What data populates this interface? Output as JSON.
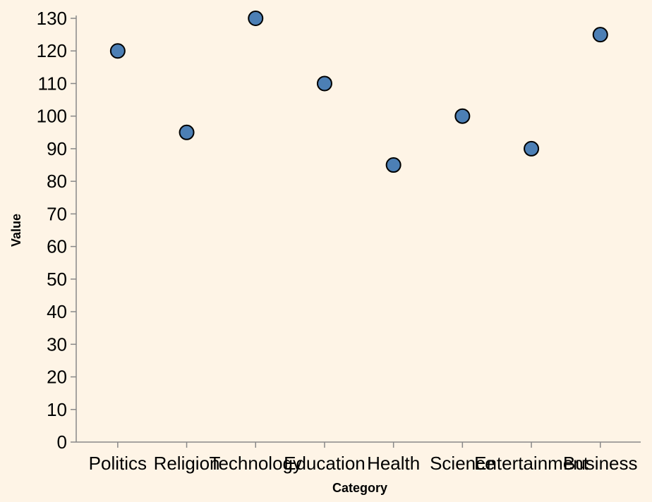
{
  "chart_data": {
    "type": "scatter",
    "categories": [
      "Politics",
      "Religion",
      "Technology",
      "Education",
      "Health",
      "Science",
      "Entertainment",
      "Business"
    ],
    "values": [
      120,
      95,
      130,
      110,
      85,
      100,
      90,
      125
    ],
    "xlabel": "Category",
    "ylabel": "Value",
    "ylim": [
      0,
      130
    ],
    "yticks": [
      0,
      10,
      20,
      30,
      40,
      50,
      60,
      70,
      80,
      90,
      100,
      110,
      120,
      130
    ],
    "grid": false,
    "colors": {
      "point_fill": "#4c7fb5",
      "point_stroke": "#000000",
      "background": "#fef4e6"
    }
  }
}
